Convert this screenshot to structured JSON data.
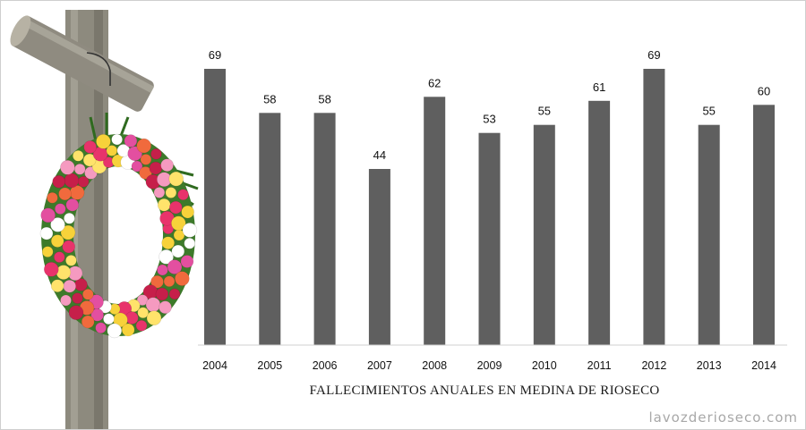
{
  "chart_data": {
    "type": "bar",
    "categories": [
      "2004",
      "2005",
      "2006",
      "2007",
      "2008",
      "2009",
      "2010",
      "2011",
      "2012",
      "2013",
      "2014"
    ],
    "values": [
      69,
      58,
      58,
      44,
      62,
      53,
      55,
      61,
      69,
      55,
      60
    ],
    "title": "FALLECIMIENTOS ANUALES EN MEDINA DE RIOSECO",
    "xlabel": "",
    "ylabel": "",
    "ylim": [
      0,
      70
    ],
    "grid": false,
    "legend": "none",
    "bar_color": "#5f5f5f"
  },
  "watermark": "lavozderioseco.com"
}
